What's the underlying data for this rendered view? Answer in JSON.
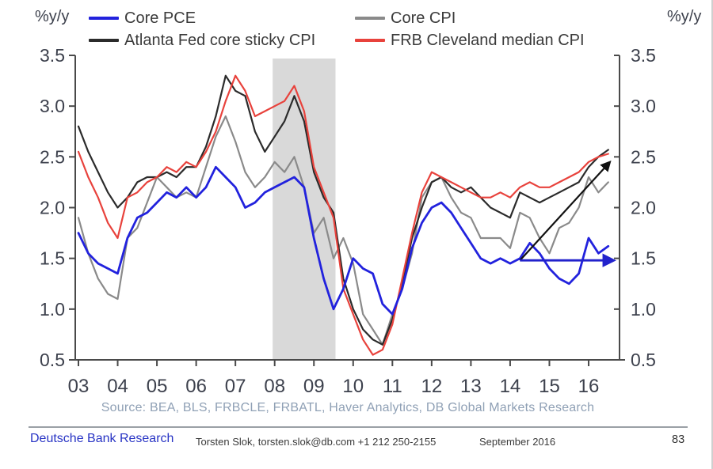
{
  "header": {
    "y_unit_left": "%y/y",
    "y_unit_right": "%y/y"
  },
  "chart_data": {
    "type": "line",
    "title": "",
    "xlabel": "",
    "ylabel": "%y/y",
    "ylim": [
      0.5,
      3.5
    ],
    "xlim": [
      2002.9,
      2016.8
    ],
    "grid": false,
    "legend_position": "top",
    "y_ticks": [
      0.5,
      1.0,
      1.5,
      2.0,
      2.5,
      3.0,
      3.5
    ],
    "x_tick_years": [
      2003,
      2004,
      2005,
      2006,
      2007,
      2008,
      2009,
      2010,
      2011,
      2012,
      2013,
      2014,
      2015,
      2016
    ],
    "x_tick_labels": [
      "03",
      "04",
      "05",
      "06",
      "07",
      "08",
      "09",
      "10",
      "11",
      "12",
      "13",
      "14",
      "15",
      "16"
    ],
    "x": [
      2003.0,
      2003.25,
      2003.5,
      2003.75,
      2004.0,
      2004.25,
      2004.5,
      2004.75,
      2005.0,
      2005.25,
      2005.5,
      2005.75,
      2006.0,
      2006.25,
      2006.5,
      2006.75,
      2007.0,
      2007.25,
      2007.5,
      2007.75,
      2008.0,
      2008.25,
      2008.5,
      2008.75,
      2009.0,
      2009.25,
      2009.5,
      2009.75,
      2010.0,
      2010.25,
      2010.5,
      2010.75,
      2011.0,
      2011.25,
      2011.5,
      2011.75,
      2012.0,
      2012.25,
      2012.5,
      2012.75,
      2013.0,
      2013.25,
      2013.5,
      2013.75,
      2014.0,
      2014.25,
      2014.5,
      2014.75,
      2015.0,
      2015.25,
      2015.5,
      2015.75,
      2016.0,
      2016.25,
      2016.5
    ],
    "series": [
      {
        "name": "Core PCE",
        "color": "#2222dd",
        "values": [
          1.75,
          1.55,
          1.45,
          1.4,
          1.35,
          1.7,
          1.9,
          1.95,
          2.05,
          2.15,
          2.1,
          2.2,
          2.1,
          2.2,
          2.4,
          2.3,
          2.2,
          2.0,
          2.05,
          2.15,
          2.2,
          2.25,
          2.3,
          2.2,
          1.7,
          1.3,
          1.0,
          1.2,
          1.5,
          1.4,
          1.35,
          1.05,
          0.95,
          1.2,
          1.6,
          1.85,
          2.0,
          2.05,
          1.95,
          1.8,
          1.65,
          1.5,
          1.45,
          1.5,
          1.45,
          1.5,
          1.65,
          1.55,
          1.4,
          1.3,
          1.25,
          1.35,
          1.7,
          1.55,
          1.62
        ]
      },
      {
        "name": "Core CPI",
        "color": "#8a8a8a",
        "values": [
          1.9,
          1.55,
          1.3,
          1.15,
          1.1,
          1.7,
          1.8,
          2.05,
          2.3,
          2.2,
          2.1,
          2.15,
          2.1,
          2.4,
          2.7,
          2.9,
          2.65,
          2.35,
          2.2,
          2.3,
          2.45,
          2.35,
          2.5,
          2.2,
          1.75,
          1.9,
          1.5,
          1.7,
          1.45,
          0.95,
          0.8,
          0.65,
          0.95,
          1.2,
          1.55,
          2.1,
          2.25,
          2.3,
          2.1,
          1.95,
          1.9,
          1.7,
          1.7,
          1.7,
          1.6,
          1.95,
          1.9,
          1.7,
          1.55,
          1.8,
          1.85,
          2.0,
          2.3,
          2.15,
          2.25
        ]
      },
      {
        "name": "Atlanta Fed core sticky CPI",
        "color": "#2b2b2b",
        "values": [
          2.8,
          2.55,
          2.35,
          2.15,
          2.0,
          2.1,
          2.25,
          2.3,
          2.3,
          2.35,
          2.3,
          2.4,
          2.4,
          2.6,
          2.9,
          3.3,
          3.15,
          3.1,
          2.75,
          2.55,
          2.7,
          2.85,
          3.1,
          2.85,
          2.35,
          2.1,
          1.95,
          1.3,
          1.0,
          0.8,
          0.7,
          0.65,
          0.9,
          1.25,
          1.7,
          2.0,
          2.25,
          2.3,
          2.2,
          2.15,
          2.2,
          2.1,
          2.0,
          1.95,
          1.9,
          2.15,
          2.1,
          2.05,
          2.1,
          2.15,
          2.2,
          2.25,
          2.4,
          2.5,
          2.57
        ]
      },
      {
        "name": "FRB Cleveland median CPI",
        "color": "#e8423c",
        "values": [
          2.55,
          2.3,
          2.1,
          1.85,
          1.7,
          2.1,
          2.15,
          2.25,
          2.3,
          2.4,
          2.35,
          2.45,
          2.4,
          2.55,
          2.75,
          3.05,
          3.3,
          3.15,
          2.9,
          2.95,
          3.0,
          3.05,
          3.2,
          2.95,
          2.4,
          2.15,
          1.9,
          1.2,
          0.95,
          0.7,
          0.55,
          0.6,
          0.85,
          1.3,
          1.75,
          2.15,
          2.35,
          2.3,
          2.25,
          2.2,
          2.15,
          2.1,
          2.1,
          2.15,
          2.1,
          2.2,
          2.25,
          2.2,
          2.2,
          2.25,
          2.3,
          2.35,
          2.45,
          2.5,
          2.53
        ]
      }
    ],
    "recession_band": {
      "start": 2007.95,
      "end": 2009.55
    },
    "band_color": "#d9d9d9",
    "annotations": [
      {
        "id": "rising-trend-arrow",
        "type": "arrow",
        "color": "#111111",
        "from": [
          2014.25,
          1.48
        ],
        "to": [
          2016.52,
          2.44
        ]
      },
      {
        "id": "flat-trend-arrow",
        "type": "arrow",
        "color": "#2222cc",
        "from": [
          2014.25,
          1.48
        ],
        "to": [
          2016.6,
          1.48
        ]
      }
    ],
    "source_note": "Source: BEA, BLS, FRBCLE, FRBATL, Haver Analytics, DB Global Markets Research"
  },
  "footer": {
    "brand": "Deutsche Bank Research",
    "contact": "Torsten Slok, torsten.slok@db.com  +1 212 250-2155",
    "date": "September 2016",
    "page": "83"
  }
}
